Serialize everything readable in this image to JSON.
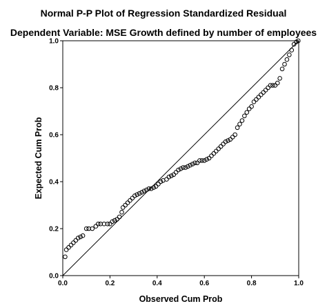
{
  "chart_data": {
    "type": "scatter",
    "title": "Normal P-P Plot of Regression Standardized Residual",
    "subtitle": "Dependent Variable: MSE Growth defined by number of employees",
    "xlabel": "Observed Cum Prob",
    "ylabel": "Expected Cum Prob",
    "xlim": [
      0,
      1
    ],
    "ylim": [
      0,
      1
    ],
    "xticks": [
      "0.0",
      "0.2",
      "0.4",
      "0.6",
      "0.8",
      "1.0"
    ],
    "yticks": [
      "0.0",
      "0.2",
      "0.4",
      "0.6",
      "0.8",
      "1.0"
    ],
    "grid": false,
    "reference_line": [
      [
        0,
        0
      ],
      [
        1,
        1
      ]
    ],
    "colors": {
      "points": "#000000",
      "line": "#000000",
      "frame": "#000000",
      "background": "#ffffff"
    },
    "points": [
      [
        0.01,
        0.08
      ],
      [
        0.015,
        0.11
      ],
      [
        0.025,
        0.12
      ],
      [
        0.035,
        0.13
      ],
      [
        0.045,
        0.14
      ],
      [
        0.055,
        0.15
      ],
      [
        0.065,
        0.16
      ],
      [
        0.075,
        0.165
      ],
      [
        0.085,
        0.17
      ],
      [
        0.1,
        0.2
      ],
      [
        0.11,
        0.2
      ],
      [
        0.125,
        0.2
      ],
      [
        0.14,
        0.21
      ],
      [
        0.15,
        0.22
      ],
      [
        0.16,
        0.22
      ],
      [
        0.175,
        0.22
      ],
      [
        0.19,
        0.22
      ],
      [
        0.2,
        0.22
      ],
      [
        0.21,
        0.23
      ],
      [
        0.22,
        0.235
      ],
      [
        0.23,
        0.24
      ],
      [
        0.24,
        0.25
      ],
      [
        0.25,
        0.27
      ],
      [
        0.255,
        0.29
      ],
      [
        0.265,
        0.3
      ],
      [
        0.275,
        0.31
      ],
      [
        0.285,
        0.32
      ],
      [
        0.295,
        0.33
      ],
      [
        0.305,
        0.34
      ],
      [
        0.315,
        0.345
      ],
      [
        0.325,
        0.35
      ],
      [
        0.335,
        0.355
      ],
      [
        0.345,
        0.36
      ],
      [
        0.355,
        0.365
      ],
      [
        0.365,
        0.37
      ],
      [
        0.375,
        0.37
      ],
      [
        0.385,
        0.375
      ],
      [
        0.395,
        0.38
      ],
      [
        0.405,
        0.39
      ],
      [
        0.415,
        0.4
      ],
      [
        0.425,
        0.405
      ],
      [
        0.44,
        0.41
      ],
      [
        0.45,
        0.42
      ],
      [
        0.46,
        0.425
      ],
      [
        0.47,
        0.43
      ],
      [
        0.48,
        0.44
      ],
      [
        0.49,
        0.45
      ],
      [
        0.5,
        0.455
      ],
      [
        0.51,
        0.46
      ],
      [
        0.52,
        0.46
      ],
      [
        0.53,
        0.465
      ],
      [
        0.54,
        0.47
      ],
      [
        0.55,
        0.475
      ],
      [
        0.56,
        0.48
      ],
      [
        0.57,
        0.48
      ],
      [
        0.58,
        0.49
      ],
      [
        0.59,
        0.49
      ],
      [
        0.6,
        0.49
      ],
      [
        0.61,
        0.495
      ],
      [
        0.62,
        0.5
      ],
      [
        0.63,
        0.51
      ],
      [
        0.64,
        0.52
      ],
      [
        0.65,
        0.53
      ],
      [
        0.66,
        0.54
      ],
      [
        0.67,
        0.55
      ],
      [
        0.68,
        0.56
      ],
      [
        0.69,
        0.57
      ],
      [
        0.7,
        0.575
      ],
      [
        0.71,
        0.58
      ],
      [
        0.72,
        0.59
      ],
      [
        0.73,
        0.6
      ],
      [
        0.74,
        0.63
      ],
      [
        0.75,
        0.645
      ],
      [
        0.76,
        0.66
      ],
      [
        0.77,
        0.68
      ],
      [
        0.78,
        0.695
      ],
      [
        0.79,
        0.71
      ],
      [
        0.8,
        0.72
      ],
      [
        0.81,
        0.74
      ],
      [
        0.82,
        0.75
      ],
      [
        0.83,
        0.76
      ],
      [
        0.84,
        0.77
      ],
      [
        0.85,
        0.78
      ],
      [
        0.86,
        0.79
      ],
      [
        0.87,
        0.8
      ],
      [
        0.88,
        0.81
      ],
      [
        0.89,
        0.81
      ],
      [
        0.9,
        0.81
      ],
      [
        0.91,
        0.82
      ],
      [
        0.92,
        0.84
      ],
      [
        0.93,
        0.88
      ],
      [
        0.94,
        0.9
      ],
      [
        0.95,
        0.92
      ],
      [
        0.96,
        0.94
      ],
      [
        0.97,
        0.96
      ],
      [
        0.98,
        0.985
      ],
      [
        0.99,
        0.995
      ],
      [
        0.998,
        1.0
      ]
    ]
  }
}
